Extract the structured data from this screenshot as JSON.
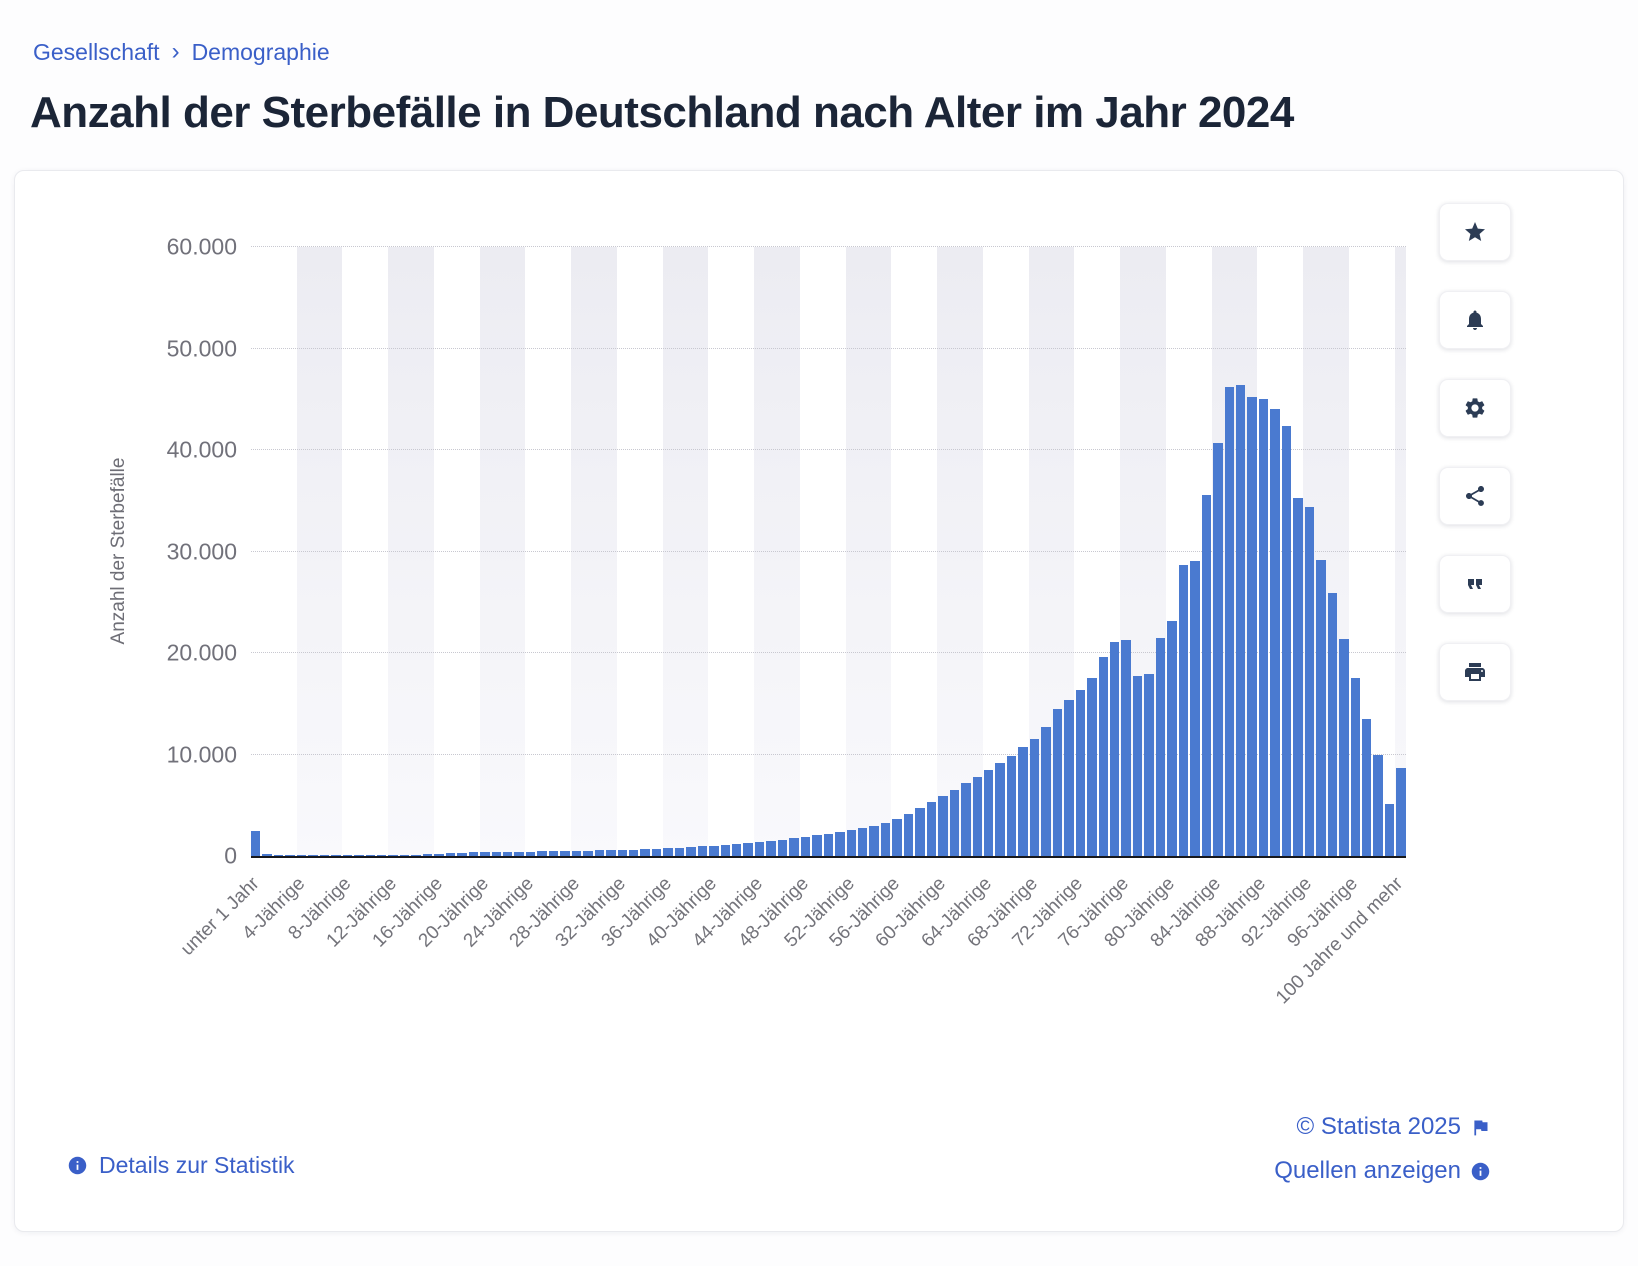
{
  "breadcrumb": {
    "separator": "›",
    "items": [
      {
        "label": "Gesellschaft"
      },
      {
        "label": "Demographie"
      }
    ]
  },
  "page": {
    "title": "Anzahl der Sterbefälle in Deutschland nach Alter im Jahr 2024"
  },
  "toolbar": {
    "buttons": [
      {
        "name": "favorite",
        "icon": "star-icon"
      },
      {
        "name": "notifications",
        "icon": "bell-icon"
      },
      {
        "name": "settings",
        "icon": "gear-icon"
      },
      {
        "name": "share",
        "icon": "share-icon"
      },
      {
        "name": "cite",
        "icon": "quote-icon"
      },
      {
        "name": "print",
        "icon": "printer-icon"
      }
    ]
  },
  "footer": {
    "details_link": "Details zur Statistik",
    "copyright": "© Statista 2025",
    "sources_link": "Quellen anzeigen"
  },
  "chart_data": {
    "type": "bar",
    "title": "Anzahl der Sterbefälle in Deutschland nach Alter im Jahr 2024",
    "xlabel": "",
    "ylabel": "Anzahl der Sterbefälle",
    "ylim": [
      0,
      60000
    ],
    "grid": true,
    "legend": false,
    "bar_color": "#4a7ad0",
    "stripe_color": "#ececf2",
    "ytick_values": [
      0,
      10000,
      20000,
      30000,
      40000,
      50000,
      60000
    ],
    "ytick_labels": [
      "0",
      "10.000",
      "20.000",
      "30.000",
      "40.000",
      "50.000",
      "60.000"
    ],
    "tick_interval": 4,
    "x_ticks": [
      "unter 1 Jahr",
      "4-Jährige",
      "8-Jährige",
      "12-Jährige",
      "16-Jährige",
      "20-Jährige",
      "24-Jährige",
      "28-Jährige",
      "32-Jährige",
      "36-Jährige",
      "40-Jährige",
      "44-Jährige",
      "48-Jährige",
      "52-Jährige",
      "56-Jährige",
      "60-Jährige",
      "64-Jährige",
      "68-Jährige",
      "72-Jährige",
      "76-Jährige",
      "80-Jährige",
      "84-Jährige",
      "88-Jährige",
      "92-Jährige",
      "96-Jährige",
      "100 Jahre und mehr"
    ],
    "categories_note": "one bar per single year of age, 0 to 100+",
    "values": [
      2450,
      160,
      110,
      95,
      85,
      75,
      70,
      70,
      75,
      80,
      85,
      95,
      105,
      120,
      140,
      170,
      215,
      265,
      330,
      370,
      390,
      400,
      410,
      420,
      430,
      445,
      460,
      480,
      500,
      520,
      545,
      575,
      605,
      640,
      680,
      725,
      775,
      830,
      890,
      955,
      1030,
      1110,
      1195,
      1290,
      1390,
      1500,
      1620,
      1750,
      1890,
      2040,
      2200,
      2370,
      2550,
      2750,
      2960,
      3250,
      3650,
      4150,
      4750,
      5350,
      5950,
      6550,
      7150,
      7800,
      8500,
      9200,
      9900,
      10700,
      11500,
      12700,
      14500,
      15400,
      16400,
      17500,
      19600,
      21100,
      21300,
      17700,
      17900,
      21500,
      23200,
      28700,
      29100,
      35600,
      40700,
      46200,
      46400,
      45200,
      45000,
      44000,
      42400,
      35300,
      34400,
      29200,
      25900,
      21400,
      17500,
      13500,
      10000,
      5100,
      8700
    ]
  }
}
